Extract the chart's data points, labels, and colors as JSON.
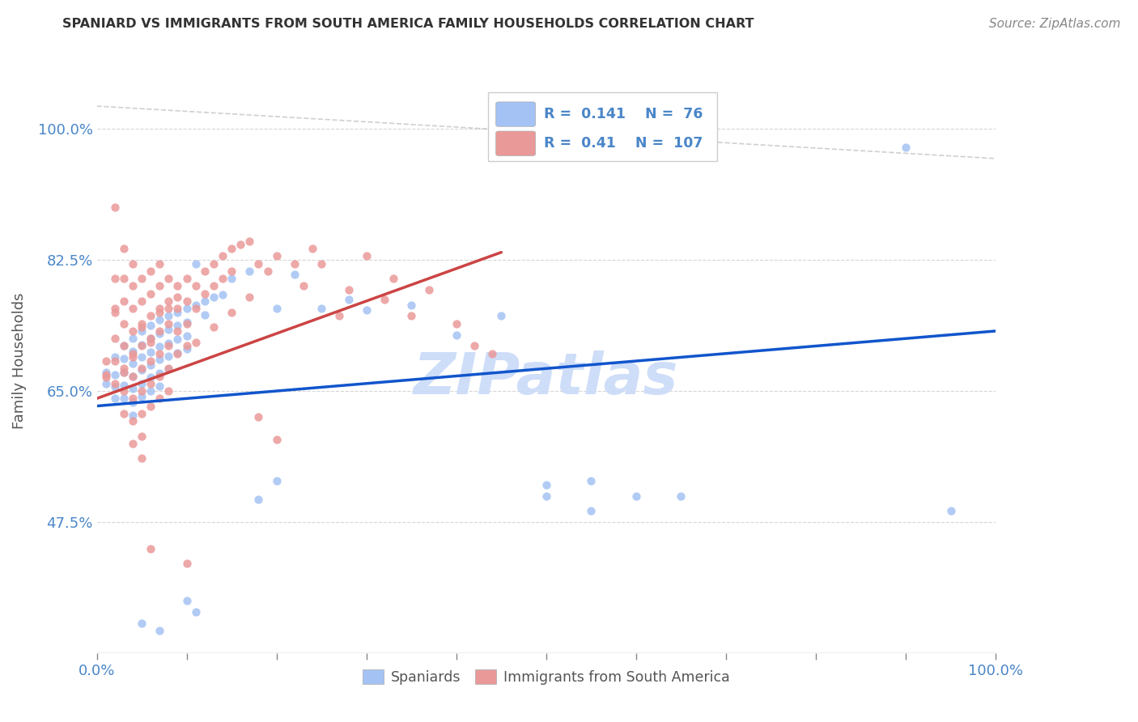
{
  "title": "SPANIARD VS IMMIGRANTS FROM SOUTH AMERICA FAMILY HOUSEHOLDS CORRELATION CHART",
  "source": "Source: ZipAtlas.com",
  "ylabel": "Family Households",
  "xlim": [
    0.0,
    1.0
  ],
  "ylim": [
    0.3,
    1.08
  ],
  "yticks": [
    0.475,
    0.65,
    0.825,
    1.0
  ],
  "ytick_labels": [
    "47.5%",
    "65.0%",
    "82.5%",
    "100.0%"
  ],
  "xticks": [
    0.0,
    0.1,
    0.2,
    0.3,
    0.4,
    0.5,
    0.6,
    0.7,
    0.8,
    0.9,
    1.0
  ],
  "xtick_labels": [
    "0.0%",
    "",
    "",
    "",
    "",
    "",
    "",
    "",
    "",
    "",
    "100.0%"
  ],
  "watermark": "ZIPatlas",
  "blue_color": "#a4c2f4",
  "pink_color": "#ea9999",
  "blue_R": 0.141,
  "blue_N": 76,
  "pink_R": 0.41,
  "pink_N": 107,
  "blue_scatter": [
    [
      0.01,
      0.675
    ],
    [
      0.01,
      0.66
    ],
    [
      0.02,
      0.695
    ],
    [
      0.02,
      0.672
    ],
    [
      0.02,
      0.655
    ],
    [
      0.02,
      0.64
    ],
    [
      0.03,
      0.71
    ],
    [
      0.03,
      0.693
    ],
    [
      0.03,
      0.675
    ],
    [
      0.03,
      0.658
    ],
    [
      0.03,
      0.64
    ],
    [
      0.04,
      0.72
    ],
    [
      0.04,
      0.703
    ],
    [
      0.04,
      0.687
    ],
    [
      0.04,
      0.67
    ],
    [
      0.04,
      0.653
    ],
    [
      0.04,
      0.635
    ],
    [
      0.04,
      0.618
    ],
    [
      0.05,
      0.73
    ],
    [
      0.05,
      0.712
    ],
    [
      0.05,
      0.695
    ],
    [
      0.05,
      0.678
    ],
    [
      0.05,
      0.66
    ],
    [
      0.05,
      0.642
    ],
    [
      0.06,
      0.738
    ],
    [
      0.06,
      0.72
    ],
    [
      0.06,
      0.702
    ],
    [
      0.06,
      0.685
    ],
    [
      0.06,
      0.668
    ],
    [
      0.06,
      0.65
    ],
    [
      0.07,
      0.745
    ],
    [
      0.07,
      0.727
    ],
    [
      0.07,
      0.709
    ],
    [
      0.07,
      0.692
    ],
    [
      0.07,
      0.674
    ],
    [
      0.07,
      0.656
    ],
    [
      0.08,
      0.75
    ],
    [
      0.08,
      0.732
    ],
    [
      0.08,
      0.714
    ],
    [
      0.08,
      0.697
    ],
    [
      0.08,
      0.679
    ],
    [
      0.09,
      0.755
    ],
    [
      0.09,
      0.737
    ],
    [
      0.09,
      0.719
    ],
    [
      0.09,
      0.701
    ],
    [
      0.1,
      0.76
    ],
    [
      0.1,
      0.742
    ],
    [
      0.1,
      0.724
    ],
    [
      0.1,
      0.706
    ],
    [
      0.11,
      0.82
    ],
    [
      0.11,
      0.765
    ],
    [
      0.12,
      0.77
    ],
    [
      0.12,
      0.752
    ],
    [
      0.13,
      0.775
    ],
    [
      0.14,
      0.778
    ],
    [
      0.15,
      0.8
    ],
    [
      0.17,
      0.81
    ],
    [
      0.2,
      0.76
    ],
    [
      0.22,
      0.805
    ],
    [
      0.25,
      0.76
    ],
    [
      0.28,
      0.772
    ],
    [
      0.3,
      0.758
    ],
    [
      0.35,
      0.765
    ],
    [
      0.4,
      0.725
    ],
    [
      0.45,
      0.75
    ],
    [
      0.5,
      0.51
    ],
    [
      0.5,
      0.525
    ],
    [
      0.55,
      0.53
    ],
    [
      0.6,
      0.51
    ],
    [
      0.65,
      0.51
    ],
    [
      0.9,
      0.975
    ],
    [
      0.18,
      0.505
    ],
    [
      0.2,
      0.53
    ],
    [
      0.1,
      0.37
    ],
    [
      0.11,
      0.355
    ],
    [
      0.55,
      0.49
    ],
    [
      0.95,
      0.49
    ],
    [
      0.05,
      0.34
    ],
    [
      0.07,
      0.33
    ]
  ],
  "pink_scatter": [
    [
      0.01,
      0.69
    ],
    [
      0.01,
      0.672
    ],
    [
      0.02,
      0.895
    ],
    [
      0.02,
      0.8
    ],
    [
      0.02,
      0.76
    ],
    [
      0.02,
      0.72
    ],
    [
      0.02,
      0.69
    ],
    [
      0.02,
      0.66
    ],
    [
      0.03,
      0.84
    ],
    [
      0.03,
      0.8
    ],
    [
      0.03,
      0.77
    ],
    [
      0.03,
      0.74
    ],
    [
      0.03,
      0.71
    ],
    [
      0.03,
      0.68
    ],
    [
      0.03,
      0.65
    ],
    [
      0.03,
      0.62
    ],
    [
      0.04,
      0.82
    ],
    [
      0.04,
      0.79
    ],
    [
      0.04,
      0.76
    ],
    [
      0.04,
      0.73
    ],
    [
      0.04,
      0.7
    ],
    [
      0.04,
      0.67
    ],
    [
      0.04,
      0.64
    ],
    [
      0.04,
      0.61
    ],
    [
      0.04,
      0.58
    ],
    [
      0.05,
      0.8
    ],
    [
      0.05,
      0.77
    ],
    [
      0.05,
      0.74
    ],
    [
      0.05,
      0.71
    ],
    [
      0.05,
      0.68
    ],
    [
      0.05,
      0.65
    ],
    [
      0.05,
      0.62
    ],
    [
      0.05,
      0.59
    ],
    [
      0.06,
      0.81
    ],
    [
      0.06,
      0.78
    ],
    [
      0.06,
      0.75
    ],
    [
      0.06,
      0.72
    ],
    [
      0.06,
      0.69
    ],
    [
      0.06,
      0.66
    ],
    [
      0.06,
      0.63
    ],
    [
      0.07,
      0.82
    ],
    [
      0.07,
      0.79
    ],
    [
      0.07,
      0.76
    ],
    [
      0.07,
      0.73
    ],
    [
      0.07,
      0.7
    ],
    [
      0.07,
      0.67
    ],
    [
      0.07,
      0.64
    ],
    [
      0.08,
      0.8
    ],
    [
      0.08,
      0.77
    ],
    [
      0.08,
      0.74
    ],
    [
      0.08,
      0.71
    ],
    [
      0.08,
      0.68
    ],
    [
      0.08,
      0.65
    ],
    [
      0.09,
      0.79
    ],
    [
      0.09,
      0.76
    ],
    [
      0.09,
      0.73
    ],
    [
      0.09,
      0.7
    ],
    [
      0.1,
      0.8
    ],
    [
      0.1,
      0.77
    ],
    [
      0.1,
      0.74
    ],
    [
      0.1,
      0.71
    ],
    [
      0.11,
      0.79
    ],
    [
      0.11,
      0.76
    ],
    [
      0.12,
      0.81
    ],
    [
      0.12,
      0.78
    ],
    [
      0.13,
      0.82
    ],
    [
      0.13,
      0.79
    ],
    [
      0.14,
      0.83
    ],
    [
      0.14,
      0.8
    ],
    [
      0.15,
      0.84
    ],
    [
      0.15,
      0.81
    ],
    [
      0.16,
      0.845
    ],
    [
      0.17,
      0.85
    ],
    [
      0.18,
      0.82
    ],
    [
      0.19,
      0.81
    ],
    [
      0.2,
      0.83
    ],
    [
      0.22,
      0.82
    ],
    [
      0.23,
      0.79
    ],
    [
      0.24,
      0.84
    ],
    [
      0.25,
      0.82
    ],
    [
      0.27,
      0.75
    ],
    [
      0.28,
      0.785
    ],
    [
      0.3,
      0.83
    ],
    [
      0.32,
      0.772
    ],
    [
      0.33,
      0.8
    ],
    [
      0.35,
      0.75
    ],
    [
      0.37,
      0.785
    ],
    [
      0.4,
      0.74
    ],
    [
      0.42,
      0.71
    ],
    [
      0.44,
      0.7
    ],
    [
      0.18,
      0.615
    ],
    [
      0.2,
      0.585
    ],
    [
      0.06,
      0.44
    ],
    [
      0.1,
      0.42
    ],
    [
      0.08,
      0.76
    ],
    [
      0.06,
      0.715
    ],
    [
      0.05,
      0.735
    ],
    [
      0.07,
      0.755
    ],
    [
      0.09,
      0.775
    ],
    [
      0.11,
      0.715
    ],
    [
      0.13,
      0.735
    ],
    [
      0.15,
      0.755
    ],
    [
      0.17,
      0.775
    ],
    [
      0.04,
      0.695
    ],
    [
      0.03,
      0.675
    ],
    [
      0.02,
      0.755
    ],
    [
      0.01,
      0.668
    ],
    [
      0.05,
      0.56
    ]
  ],
  "blue_line_color": "#1155cc",
  "pink_line_color": "#cc4444",
  "ref_line_color": "#bbbbbb",
  "grid_color": "#cccccc",
  "axis_color": "#4a86c8",
  "title_color": "#333333",
  "background_color": "#ffffff",
  "watermark_color": "#c9daf8",
  "blue_trend_x": [
    0.0,
    1.0
  ],
  "blue_trend_y": [
    0.63,
    0.73
  ],
  "pink_trend_x": [
    0.0,
    0.45
  ],
  "pink_trend_y": [
    0.64,
    0.835
  ],
  "ref_line_x": [
    0.0,
    1.0
  ],
  "ref_line_y": [
    1.03,
    0.96
  ]
}
